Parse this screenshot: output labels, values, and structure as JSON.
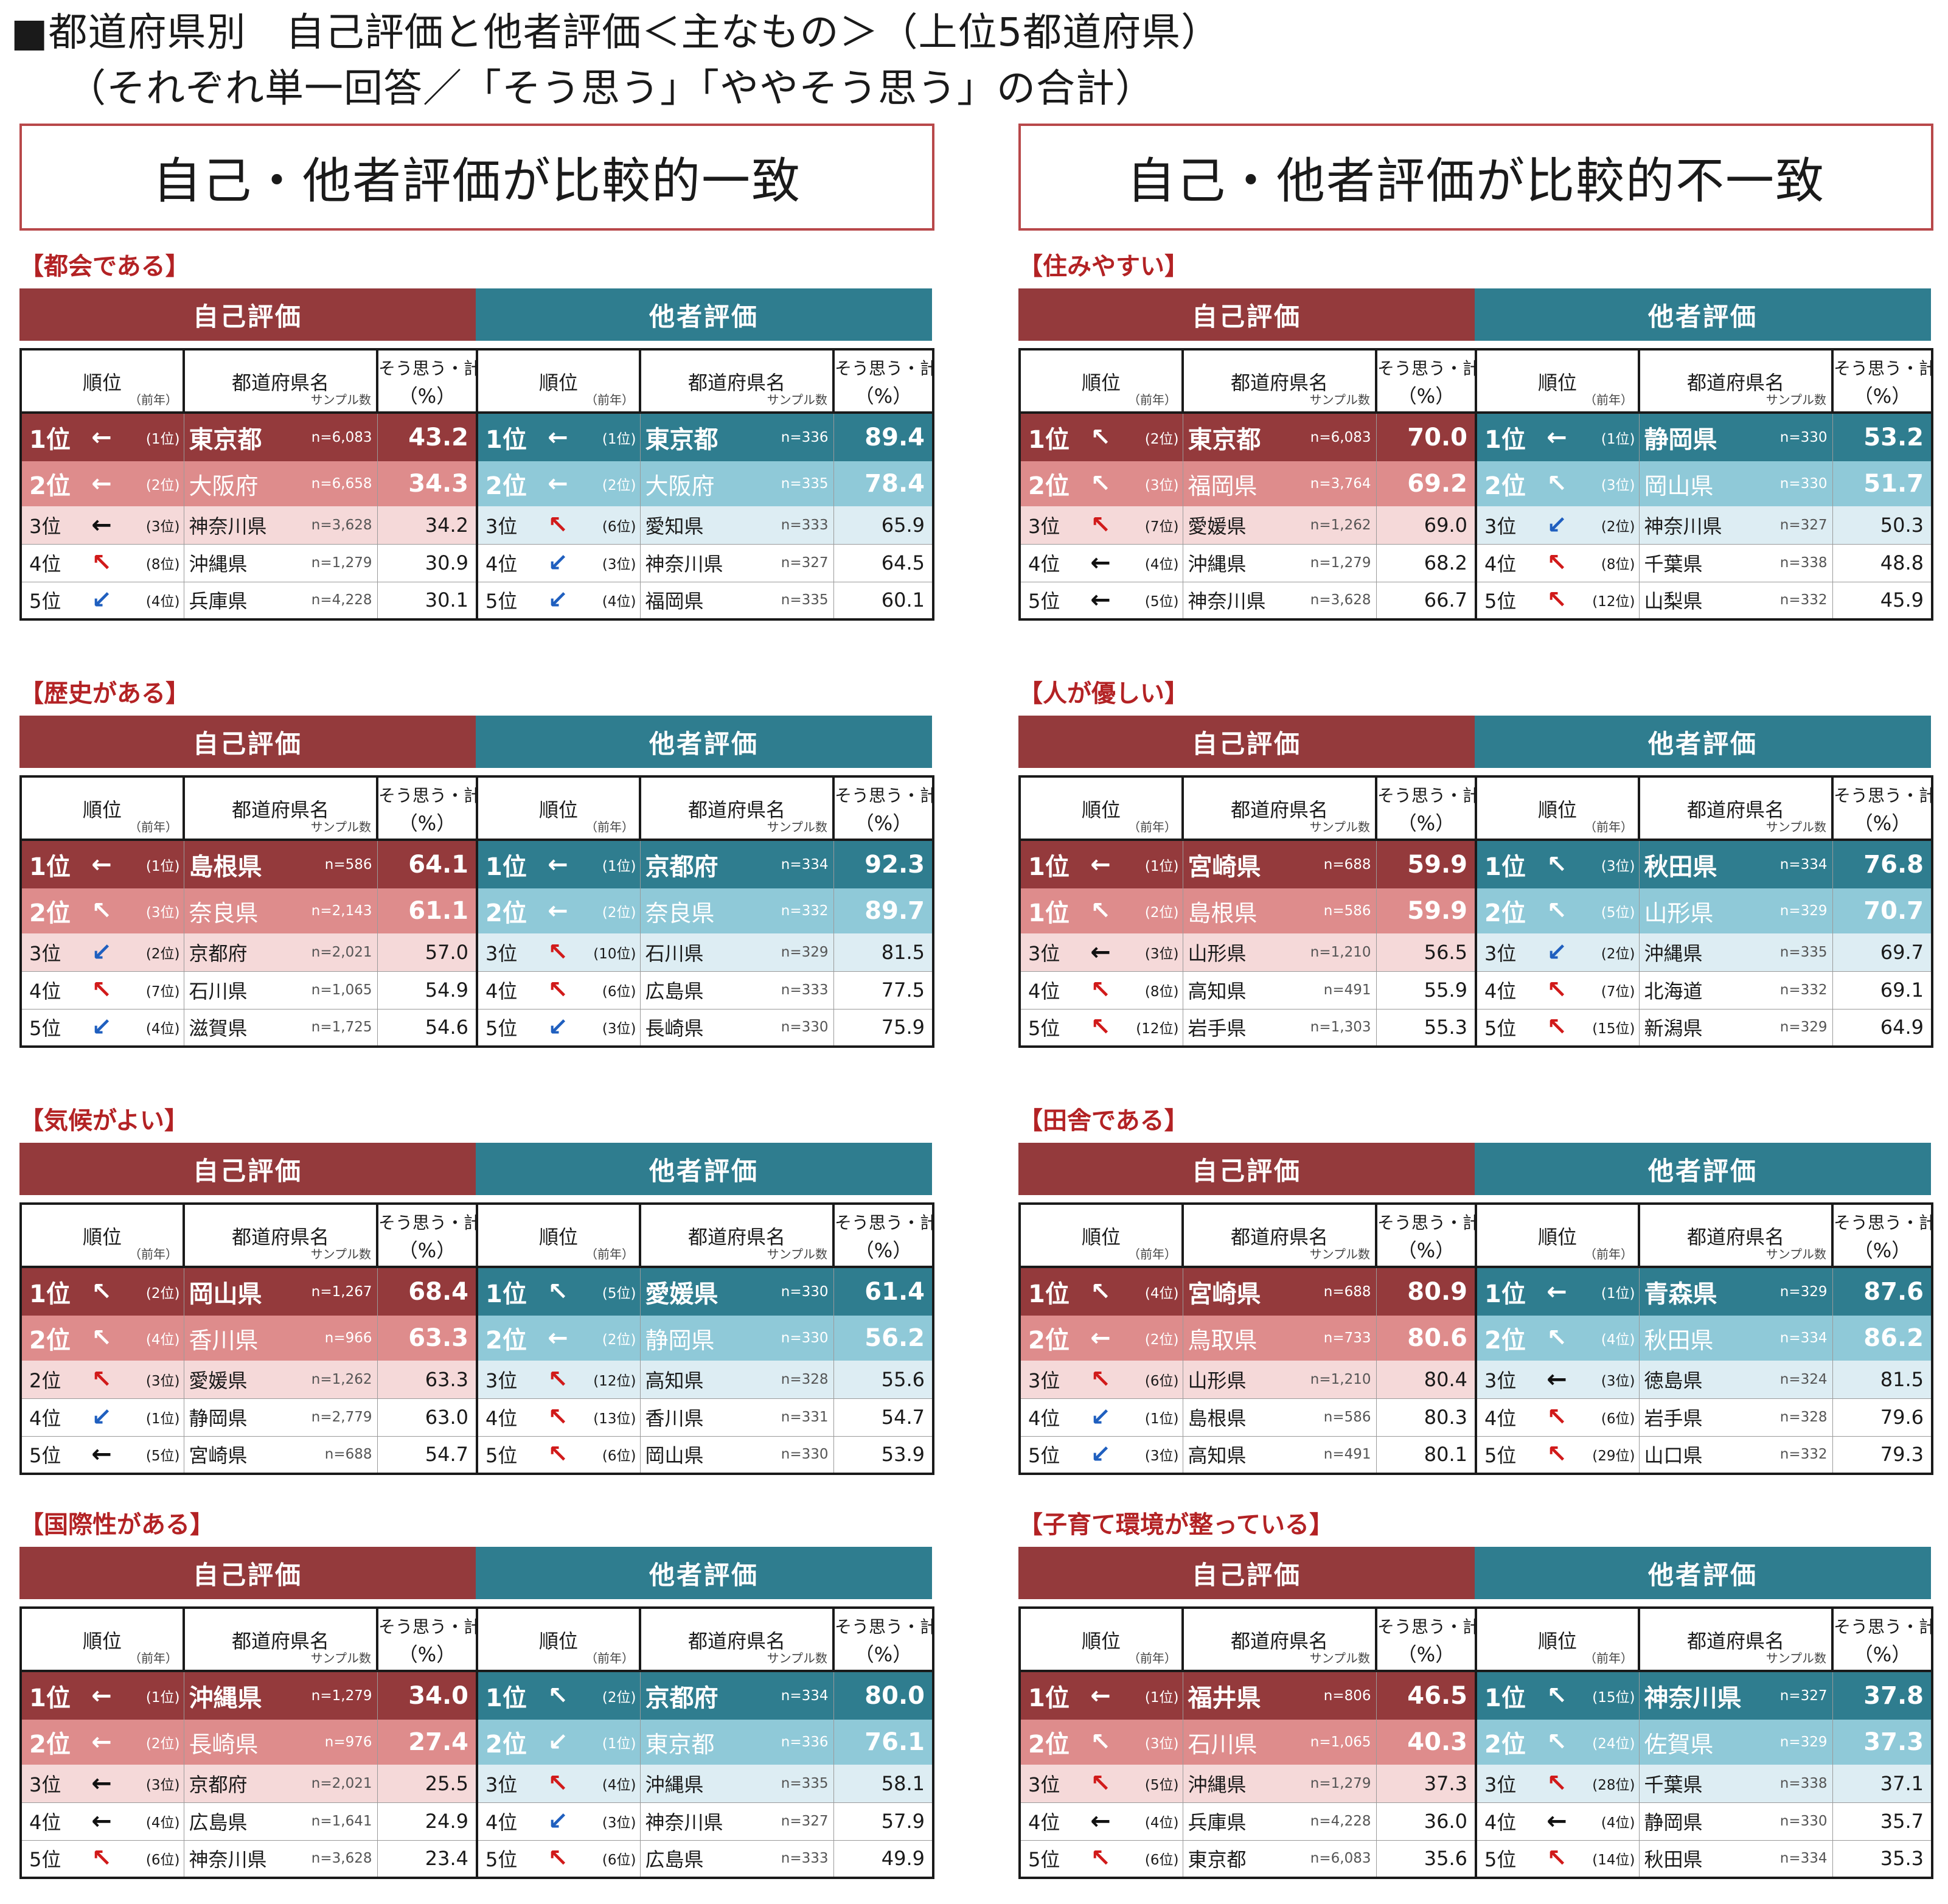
{
  "title": {
    "line1": "■都道府県別　自己評価と他者評価＜主なもの＞（上位5都道府県）",
    "line2": "（それぞれ単一回答／「そう思う」「ややそう思う」の合計）"
  },
  "groups": {
    "left": "自己・他者評価が比較的一致",
    "right": "自己・他者評価が比較的不一致"
  },
  "headers": {
    "self": "自己評価",
    "other": "他者評価",
    "rank": "順位",
    "prev": "（前年）",
    "pref": "都道府県名",
    "sample": "サンプル数",
    "pct1": "そう思う・計",
    "pct2": "（%）"
  },
  "arrow_glyphs": {
    "left": "←",
    "up": "↖",
    "down": "↙"
  },
  "colors": {
    "self_dark": "#943a3c",
    "self_mid": "#de8c8c",
    "self_light": "#f5d9d9",
    "other_dark": "#2f7d8f",
    "other_mid": "#8fc9d8",
    "other_light": "#ddedf3",
    "section_title": "#b32224",
    "banner_border": "#b8484a"
  },
  "sections": [
    {
      "title": "【都会である】",
      "self": [
        {
          "rank": "1位",
          "arrow": "left",
          "prev": "(1位)",
          "pref": "東京都",
          "n": "n=6,083",
          "value": "43.2"
        },
        {
          "rank": "2位",
          "arrow": "left",
          "prev": "(2位)",
          "pref": "大阪府",
          "n": "n=6,658",
          "value": "34.3"
        },
        {
          "rank": "3位",
          "arrow": "left",
          "prev": "(3位)",
          "pref": "神奈川県",
          "n": "n=3,628",
          "value": "34.2"
        },
        {
          "rank": "4位",
          "arrow": "up",
          "prev": "(8位)",
          "pref": "沖縄県",
          "n": "n=1,279",
          "value": "30.9"
        },
        {
          "rank": "5位",
          "arrow": "down",
          "prev": "(4位)",
          "pref": "兵庫県",
          "n": "n=4,228",
          "value": "30.1"
        }
      ],
      "other": [
        {
          "rank": "1位",
          "arrow": "left",
          "prev": "(1位)",
          "pref": "東京都",
          "n": "n=336",
          "value": "89.4"
        },
        {
          "rank": "2位",
          "arrow": "left",
          "prev": "(2位)",
          "pref": "大阪府",
          "n": "n=335",
          "value": "78.4"
        },
        {
          "rank": "3位",
          "arrow": "up",
          "prev": "(6位)",
          "pref": "愛知県",
          "n": "n=333",
          "value": "65.9"
        },
        {
          "rank": "4位",
          "arrow": "down",
          "prev": "(3位)",
          "pref": "神奈川県",
          "n": "n=327",
          "value": "64.5"
        },
        {
          "rank": "5位",
          "arrow": "down",
          "prev": "(4位)",
          "pref": "福岡県",
          "n": "n=335",
          "value": "60.1"
        }
      ]
    },
    {
      "title": "【住みやすい】",
      "self": [
        {
          "rank": "1位",
          "arrow": "up",
          "prev": "(2位)",
          "pref": "東京都",
          "n": "n=6,083",
          "value": "70.0"
        },
        {
          "rank": "2位",
          "arrow": "up",
          "prev": "(3位)",
          "pref": "福岡県",
          "n": "n=3,764",
          "value": "69.2"
        },
        {
          "rank": "3位",
          "arrow": "up",
          "prev": "(7位)",
          "pref": "愛媛県",
          "n": "n=1,262",
          "value": "69.0"
        },
        {
          "rank": "4位",
          "arrow": "left",
          "prev": "(4位)",
          "pref": "沖縄県",
          "n": "n=1,279",
          "value": "68.2"
        },
        {
          "rank": "5位",
          "arrow": "left",
          "prev": "(5位)",
          "pref": "神奈川県",
          "n": "n=3,628",
          "value": "66.7"
        }
      ],
      "other": [
        {
          "rank": "1位",
          "arrow": "left",
          "prev": "(1位)",
          "pref": "静岡県",
          "n": "n=330",
          "value": "53.2"
        },
        {
          "rank": "2位",
          "arrow": "up",
          "prev": "(3位)",
          "pref": "岡山県",
          "n": "n=330",
          "value": "51.7"
        },
        {
          "rank": "3位",
          "arrow": "down",
          "prev": "(2位)",
          "pref": "神奈川県",
          "n": "n=327",
          "value": "50.3"
        },
        {
          "rank": "4位",
          "arrow": "up",
          "prev": "(8位)",
          "pref": "千葉県",
          "n": "n=338",
          "value": "48.8"
        },
        {
          "rank": "5位",
          "arrow": "up",
          "prev": "(12位)",
          "pref": "山梨県",
          "n": "n=332",
          "value": "45.9"
        }
      ]
    },
    {
      "title": "【歴史がある】",
      "self": [
        {
          "rank": "1位",
          "arrow": "left",
          "prev": "(1位)",
          "pref": "島根県",
          "n": "n=586",
          "value": "64.1"
        },
        {
          "rank": "2位",
          "arrow": "up",
          "prev": "(3位)",
          "pref": "奈良県",
          "n": "n=2,143",
          "value": "61.1"
        },
        {
          "rank": "3位",
          "arrow": "down",
          "prev": "(2位)",
          "pref": "京都府",
          "n": "n=2,021",
          "value": "57.0"
        },
        {
          "rank": "4位",
          "arrow": "up",
          "prev": "(7位)",
          "pref": "石川県",
          "n": "n=1,065",
          "value": "54.9"
        },
        {
          "rank": "5位",
          "arrow": "down",
          "prev": "(4位)",
          "pref": "滋賀県",
          "n": "n=1,725",
          "value": "54.6"
        }
      ],
      "other": [
        {
          "rank": "1位",
          "arrow": "left",
          "prev": "(1位)",
          "pref": "京都府",
          "n": "n=334",
          "value": "92.3"
        },
        {
          "rank": "2位",
          "arrow": "left",
          "prev": "(2位)",
          "pref": "奈良県",
          "n": "n=332",
          "value": "89.7"
        },
        {
          "rank": "3位",
          "arrow": "up",
          "prev": "(10位)",
          "pref": "石川県",
          "n": "n=329",
          "value": "81.5"
        },
        {
          "rank": "4位",
          "arrow": "up",
          "prev": "(6位)",
          "pref": "広島県",
          "n": "n=333",
          "value": "77.5"
        },
        {
          "rank": "5位",
          "arrow": "down",
          "prev": "(3位)",
          "pref": "長崎県",
          "n": "n=330",
          "value": "75.9"
        }
      ]
    },
    {
      "title": "【人が優しい】",
      "self": [
        {
          "rank": "1位",
          "arrow": "left",
          "prev": "(1位)",
          "pref": "宮崎県",
          "n": "n=688",
          "value": "59.9"
        },
        {
          "rank": "1位",
          "arrow": "up",
          "prev": "(2位)",
          "pref": "島根県",
          "n": "n=586",
          "value": "59.9"
        },
        {
          "rank": "3位",
          "arrow": "left",
          "prev": "(3位)",
          "pref": "山形県",
          "n": "n=1,210",
          "value": "56.5"
        },
        {
          "rank": "4位",
          "arrow": "up",
          "prev": "(8位)",
          "pref": "高知県",
          "n": "n=491",
          "value": "55.9"
        },
        {
          "rank": "5位",
          "arrow": "up",
          "prev": "(12位)",
          "pref": "岩手県",
          "n": "n=1,303",
          "value": "55.3"
        }
      ],
      "other": [
        {
          "rank": "1位",
          "arrow": "up",
          "prev": "(3位)",
          "pref": "秋田県",
          "n": "n=334",
          "value": "76.8"
        },
        {
          "rank": "2位",
          "arrow": "up",
          "prev": "(5位)",
          "pref": "山形県",
          "n": "n=329",
          "value": "70.7"
        },
        {
          "rank": "3位",
          "arrow": "down",
          "prev": "(2位)",
          "pref": "沖縄県",
          "n": "n=335",
          "value": "69.7"
        },
        {
          "rank": "4位",
          "arrow": "up",
          "prev": "(7位)",
          "pref": "北海道",
          "n": "n=332",
          "value": "69.1"
        },
        {
          "rank": "5位",
          "arrow": "up",
          "prev": "(15位)",
          "pref": "新潟県",
          "n": "n=329",
          "value": "64.9"
        }
      ]
    },
    {
      "title": "【気候がよい】",
      "self": [
        {
          "rank": "1位",
          "arrow": "up",
          "prev": "(2位)",
          "pref": "岡山県",
          "n": "n=1,267",
          "value": "68.4"
        },
        {
          "rank": "2位",
          "arrow": "up",
          "prev": "(4位)",
          "pref": "香川県",
          "n": "n=966",
          "value": "63.3"
        },
        {
          "rank": "2位",
          "arrow": "up",
          "prev": "(3位)",
          "pref": "愛媛県",
          "n": "n=1,262",
          "value": "63.3"
        },
        {
          "rank": "4位",
          "arrow": "down",
          "prev": "(1位)",
          "pref": "静岡県",
          "n": "n=2,779",
          "value": "63.0"
        },
        {
          "rank": "5位",
          "arrow": "left",
          "prev": "(5位)",
          "pref": "宮崎県",
          "n": "n=688",
          "value": "54.7"
        }
      ],
      "other": [
        {
          "rank": "1位",
          "arrow": "up",
          "prev": "(5位)",
          "pref": "愛媛県",
          "n": "n=330",
          "value": "61.4"
        },
        {
          "rank": "2位",
          "arrow": "left",
          "prev": "(2位)",
          "pref": "静岡県",
          "n": "n=330",
          "value": "56.2"
        },
        {
          "rank": "3位",
          "arrow": "up",
          "prev": "(12位)",
          "pref": "高知県",
          "n": "n=328",
          "value": "55.6"
        },
        {
          "rank": "4位",
          "arrow": "up",
          "prev": "(13位)",
          "pref": "香川県",
          "n": "n=331",
          "value": "54.7"
        },
        {
          "rank": "5位",
          "arrow": "up",
          "prev": "(6位)",
          "pref": "岡山県",
          "n": "n=330",
          "value": "53.9"
        }
      ]
    },
    {
      "title": "【田舎である】",
      "self": [
        {
          "rank": "1位",
          "arrow": "up",
          "prev": "(4位)",
          "pref": "宮崎県",
          "n": "n=688",
          "value": "80.9"
        },
        {
          "rank": "2位",
          "arrow": "left",
          "prev": "(2位)",
          "pref": "鳥取県",
          "n": "n=733",
          "value": "80.6"
        },
        {
          "rank": "3位",
          "arrow": "up",
          "prev": "(6位)",
          "pref": "山形県",
          "n": "n=1,210",
          "value": "80.4"
        },
        {
          "rank": "4位",
          "arrow": "down",
          "prev": "(1位)",
          "pref": "島根県",
          "n": "n=586",
          "value": "80.3"
        },
        {
          "rank": "5位",
          "arrow": "down",
          "prev": "(3位)",
          "pref": "高知県",
          "n": "n=491",
          "value": "80.1"
        }
      ],
      "other": [
        {
          "rank": "1位",
          "arrow": "left",
          "prev": "(1位)",
          "pref": "青森県",
          "n": "n=329",
          "value": "87.6"
        },
        {
          "rank": "2位",
          "arrow": "up",
          "prev": "(4位)",
          "pref": "秋田県",
          "n": "n=334",
          "value": "86.2"
        },
        {
          "rank": "3位",
          "arrow": "left",
          "prev": "(3位)",
          "pref": "徳島県",
          "n": "n=324",
          "value": "81.5"
        },
        {
          "rank": "4位",
          "arrow": "up",
          "prev": "(6位)",
          "pref": "岩手県",
          "n": "n=328",
          "value": "79.6"
        },
        {
          "rank": "5位",
          "arrow": "up",
          "prev": "(29位)",
          "pref": "山口県",
          "n": "n=332",
          "value": "79.3"
        }
      ]
    },
    {
      "title": "【国際性がある】",
      "self": [
        {
          "rank": "1位",
          "arrow": "left",
          "prev": "(1位)",
          "pref": "沖縄県",
          "n": "n=1,279",
          "value": "34.0"
        },
        {
          "rank": "2位",
          "arrow": "left",
          "prev": "(2位)",
          "pref": "長崎県",
          "n": "n=976",
          "value": "27.4"
        },
        {
          "rank": "3位",
          "arrow": "left",
          "prev": "(3位)",
          "pref": "京都府",
          "n": "n=2,021",
          "value": "25.5"
        },
        {
          "rank": "4位",
          "arrow": "left",
          "prev": "(4位)",
          "pref": "広島県",
          "n": "n=1,641",
          "value": "24.9"
        },
        {
          "rank": "5位",
          "arrow": "up",
          "prev": "(6位)",
          "pref": "神奈川県",
          "n": "n=3,628",
          "value": "23.4"
        }
      ],
      "other": [
        {
          "rank": "1位",
          "arrow": "up",
          "prev": "(2位)",
          "pref": "京都府",
          "n": "n=334",
          "value": "80.0"
        },
        {
          "rank": "2位",
          "arrow": "down",
          "prev": "(1位)",
          "pref": "東京都",
          "n": "n=336",
          "value": "76.1"
        },
        {
          "rank": "3位",
          "arrow": "up",
          "prev": "(4位)",
          "pref": "沖縄県",
          "n": "n=335",
          "value": "58.1"
        },
        {
          "rank": "4位",
          "arrow": "down",
          "prev": "(3位)",
          "pref": "神奈川県",
          "n": "n=327",
          "value": "57.9"
        },
        {
          "rank": "5位",
          "arrow": "up",
          "prev": "(6位)",
          "pref": "広島県",
          "n": "n=333",
          "value": "49.9"
        }
      ]
    },
    {
      "title": "【子育て環境が整っている】",
      "self": [
        {
          "rank": "1位",
          "arrow": "left",
          "prev": "(1位)",
          "pref": "福井県",
          "n": "n=806",
          "value": "46.5"
        },
        {
          "rank": "2位",
          "arrow": "up",
          "prev": "(3位)",
          "pref": "石川県",
          "n": "n=1,065",
          "value": "40.3"
        },
        {
          "rank": "3位",
          "arrow": "up",
          "prev": "(5位)",
          "pref": "沖縄県",
          "n": "n=1,279",
          "value": "37.3"
        },
        {
          "rank": "4位",
          "arrow": "left",
          "prev": "(4位)",
          "pref": "兵庫県",
          "n": "n=4,228",
          "value": "36.0"
        },
        {
          "rank": "5位",
          "arrow": "up",
          "prev": "(6位)",
          "pref": "東京都",
          "n": "n=6,083",
          "value": "35.6"
        }
      ],
      "other": [
        {
          "rank": "1位",
          "arrow": "up",
          "prev": "(15位)",
          "pref": "神奈川県",
          "n": "n=327",
          "value": "37.8"
        },
        {
          "rank": "2位",
          "arrow": "up",
          "prev": "(24位)",
          "pref": "佐賀県",
          "n": "n=329",
          "value": "37.3"
        },
        {
          "rank": "3位",
          "arrow": "up",
          "prev": "(28位)",
          "pref": "千葉県",
          "n": "n=338",
          "value": "37.1"
        },
        {
          "rank": "4位",
          "arrow": "left",
          "prev": "(4位)",
          "pref": "静岡県",
          "n": "n=330",
          "value": "35.7"
        },
        {
          "rank": "5位",
          "arrow": "up",
          "prev": "(14位)",
          "pref": "秋田県",
          "n": "n=334",
          "value": "35.3"
        }
      ]
    }
  ]
}
